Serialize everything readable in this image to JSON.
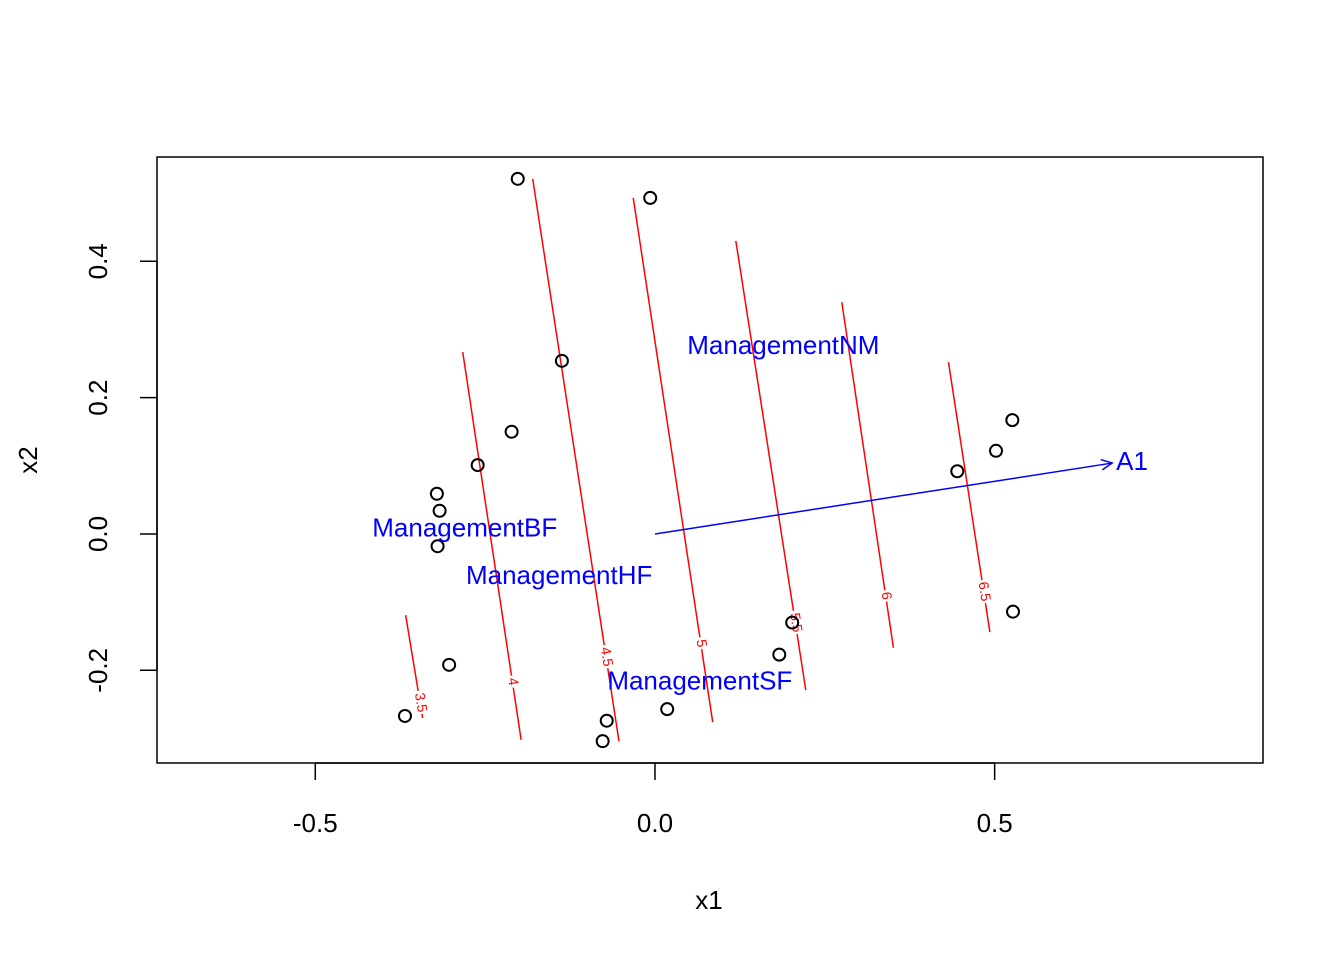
{
  "chart_data": {
    "type": "scatter",
    "x_label": "x1",
    "y_label": "x2",
    "xlim": [
      -0.733,
      0.895
    ],
    "ylim": [
      -0.336,
      0.553
    ],
    "xticks": [
      -0.5,
      {
        "value": 0,
        "label": "0.0"
      },
      0.5
    ],
    "yticks": [
      -0.2,
      {
        "value": 0,
        "label": "0.0"
      },
      0.2,
      0.4
    ],
    "color": "#000000",
    "points": {
      "x": [
        -0.202,
        -0.007,
        -0.137,
        -0.211,
        -0.261,
        -0.321,
        -0.317,
        -0.32,
        -0.303,
        -0.368,
        -0.071,
        -0.077,
        0.018,
        0.183,
        0.202,
        0.445,
        0.502,
        0.526,
        0.527
      ],
      "y": [
        0.521,
        0.493,
        0.254,
        0.15,
        0.101,
        0.059,
        0.034,
        -0.018,
        -0.192,
        -0.267,
        -0.274,
        -0.304,
        -0.257,
        -0.177,
        -0.13,
        0.092,
        0.122,
        0.167,
        -0.114
      ]
    },
    "contour_color": "#ff0000",
    "contours": [
      {
        "level": 3.5,
        "x": [
          -0.367,
          -0.342
        ],
        "y": [
          -0.119,
          -0.27
        ]
      },
      {
        "level": 4,
        "x": [
          -0.283,
          -0.197
        ],
        "y": [
          0.267,
          -0.302
        ]
      },
      {
        "level": 4.5,
        "x": [
          -0.18,
          -0.053
        ],
        "y": [
          0.521,
          -0.304
        ]
      },
      {
        "level": 5,
        "x": [
          -0.032,
          0.085
        ],
        "y": [
          0.493,
          -0.276
        ]
      },
      {
        "level": 5.5,
        "x": [
          0.119,
          0.222
        ],
        "y": [
          0.43,
          -0.229
        ]
      },
      {
        "level": 6,
        "x": [
          0.275,
          0.351
        ],
        "y": [
          0.34,
          -0.167
        ]
      },
      {
        "level": 6.5,
        "x": [
          0.432,
          0.493
        ],
        "y": [
          0.252,
          -0.144
        ]
      }
    ],
    "vector_color": "#0000ff",
    "vectors": [
      {
        "name": "A1",
        "x": 0.673,
        "y": 0.104
      }
    ],
    "centroids": [
      {
        "name": "ManagementNM",
        "x": 0.189,
        "y": 0.274
      },
      {
        "name": "ManagementBF",
        "x": -0.28,
        "y": 0.006
      },
      {
        "name": "ManagementHF",
        "x": -0.141,
        "y": -0.063
      },
      {
        "name": "ManagementSF",
        "x": 0.066,
        "y": -0.218
      }
    ]
  }
}
